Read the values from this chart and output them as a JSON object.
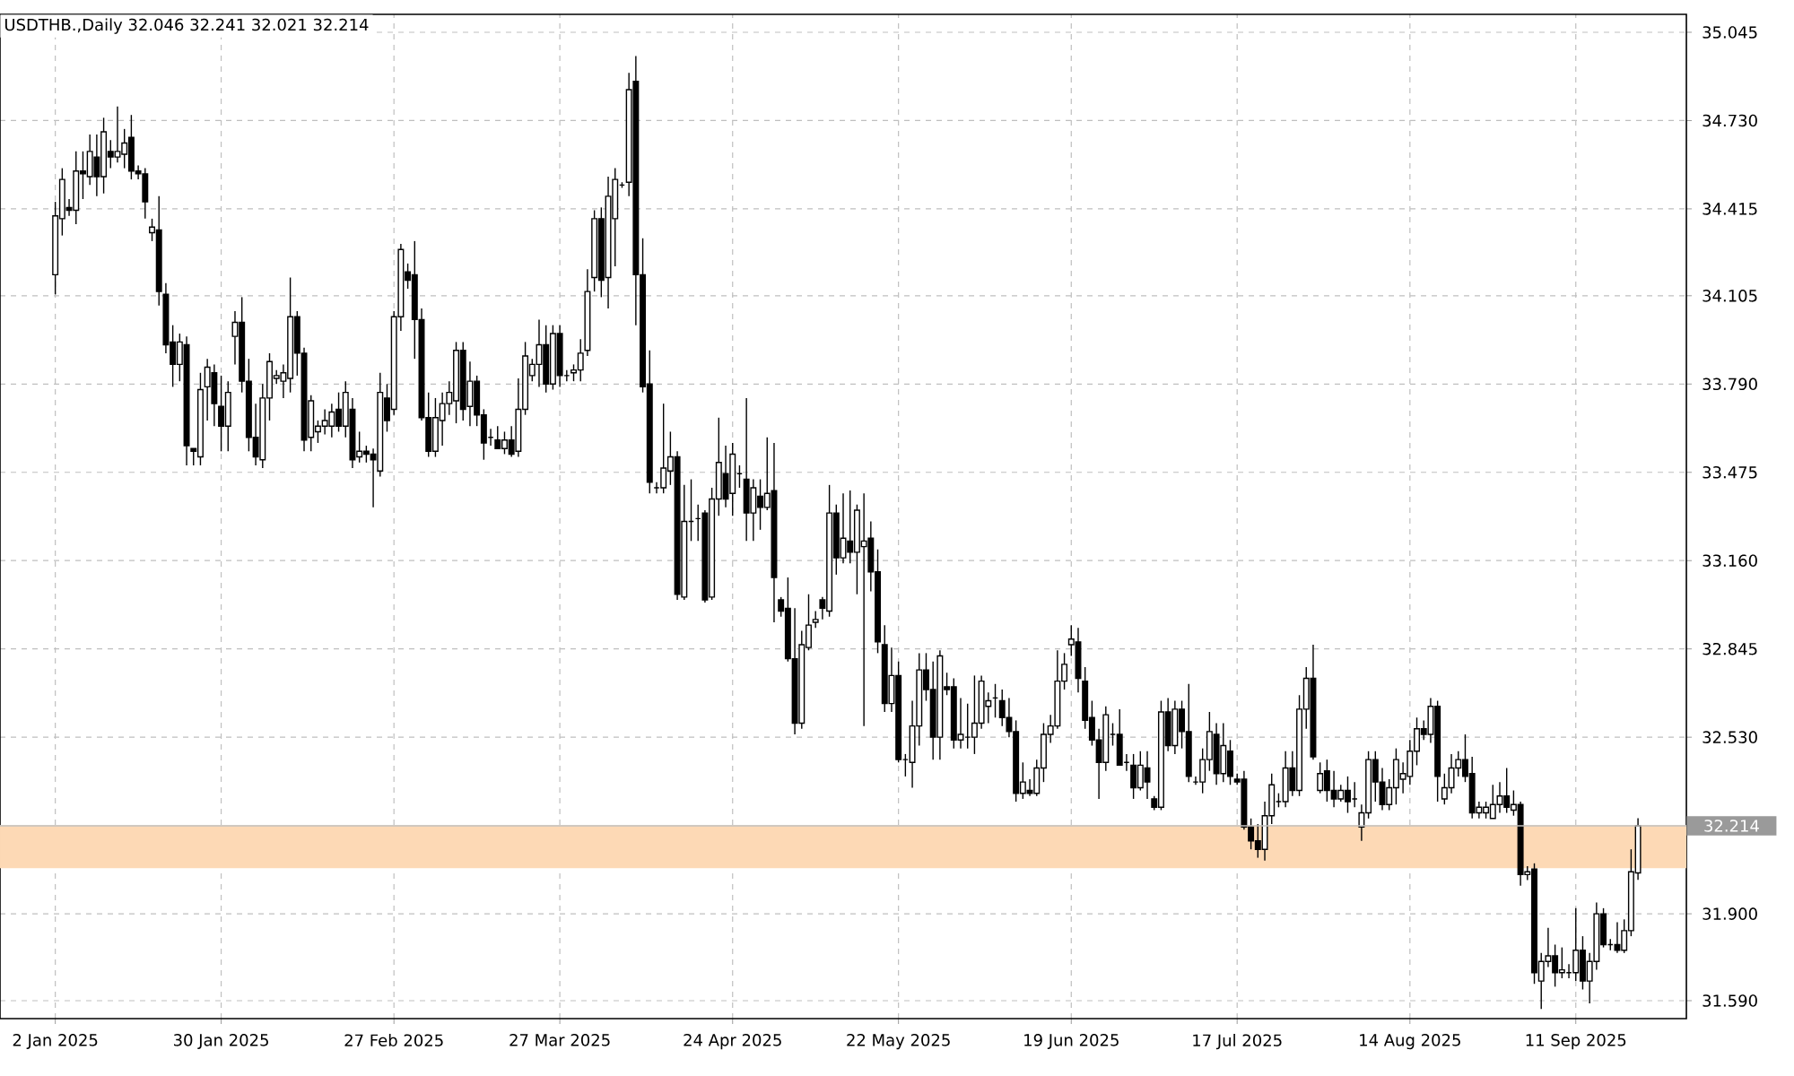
{
  "chart_data": {
    "type": "candlestick",
    "title": "USDTHB.,Daily  32.046 32.241 32.021 32.214",
    "categories": [
      "2 Jan 2025",
      null,
      null,
      null,
      null,
      null,
      null,
      null,
      null,
      null,
      null,
      null,
      null,
      null,
      null,
      null,
      null,
      null,
      null,
      null,
      null,
      null,
      null,
      null,
      "30 Jan 2025",
      null,
      null,
      null,
      null,
      null,
      null,
      null,
      null,
      null,
      null,
      null,
      null,
      null,
      null,
      null,
      null,
      null,
      null,
      null,
      null,
      null,
      null,
      null,
      null,
      "27 Feb 2025",
      null,
      null,
      null,
      null,
      null,
      null,
      null,
      null,
      null,
      null,
      null,
      null,
      null,
      null,
      null,
      null,
      null,
      null,
      null,
      null,
      null,
      null,
      null,
      "27 Mar 2025",
      null,
      null,
      null,
      null,
      null,
      null,
      null,
      null,
      null,
      null,
      null,
      null,
      null,
      null,
      null,
      null,
      null,
      null,
      null,
      null,
      null,
      null,
      null,
      null,
      "24 Apr 2025",
      null,
      null,
      null,
      null,
      null,
      null,
      null,
      null,
      null,
      null,
      null,
      null,
      null,
      null,
      null,
      null,
      null,
      null,
      null,
      null,
      null,
      null,
      null,
      "22 May 2025",
      null,
      null,
      null,
      null,
      null,
      null,
      null,
      null,
      null,
      null,
      null,
      null,
      null,
      null,
      null,
      null,
      null,
      null,
      null,
      null,
      null,
      null,
      null,
      null,
      "19 Jun 2025",
      null,
      null,
      null,
      null,
      null,
      null,
      null,
      null,
      null,
      null,
      null,
      null,
      null,
      null,
      null,
      null,
      null,
      null,
      null,
      null,
      null,
      null,
      null,
      "17 Jul 2025",
      null,
      null,
      null,
      null,
      null,
      null,
      null,
      null,
      null,
      null,
      null,
      null,
      null,
      null,
      null,
      null,
      null,
      null,
      null,
      null,
      null,
      null,
      null,
      null,
      "14 Aug 2025",
      null,
      null,
      null,
      null,
      null,
      null,
      null,
      null,
      null,
      null,
      null,
      null,
      null,
      null,
      null,
      null,
      null,
      null,
      null,
      null,
      null,
      null,
      null,
      "11 Sep 2025",
      null,
      null,
      null,
      null,
      null,
      null,
      null,
      null,
      null
    ],
    "ohlc": [
      [
        34.18,
        34.44,
        34.11,
        34.39
      ],
      [
        34.38,
        34.56,
        34.32,
        34.52
      ],
      [
        34.42,
        34.45,
        34.39,
        34.41
      ],
      [
        34.41,
        34.62,
        34.36,
        34.55
      ],
      [
        34.55,
        34.62,
        34.45,
        34.54
      ],
      [
        34.53,
        34.68,
        34.5,
        34.62
      ],
      [
        34.6,
        34.68,
        34.46,
        34.53
      ],
      [
        34.53,
        34.74,
        34.47,
        34.69
      ],
      [
        34.62,
        34.66,
        34.56,
        34.6
      ],
      [
        34.6,
        34.78,
        34.58,
        34.62
      ],
      [
        34.61,
        34.7,
        34.56,
        34.65
      ],
      [
        34.67,
        34.75,
        34.52,
        34.55
      ],
      [
        34.55,
        34.57,
        34.52,
        34.54
      ],
      [
        34.54,
        34.56,
        34.38,
        34.44
      ],
      [
        34.33,
        34.38,
        34.3,
        34.35
      ],
      [
        34.34,
        34.46,
        34.07,
        34.12
      ],
      [
        34.11,
        34.15,
        33.9,
        33.93
      ],
      [
        33.94,
        34.0,
        33.78,
        33.86
      ],
      [
        33.86,
        33.97,
        33.8,
        33.94
      ],
      [
        33.93,
        33.96,
        33.5,
        33.57
      ],
      [
        33.56,
        33.56,
        33.5,
        33.55
      ],
      [
        33.53,
        33.83,
        33.5,
        33.77
      ],
      [
        33.78,
        33.88,
        33.66,
        33.85
      ],
      [
        33.83,
        33.86,
        33.64,
        33.72
      ],
      [
        33.71,
        33.82,
        33.55,
        33.64
      ],
      [
        33.64,
        33.8,
        33.55,
        33.76
      ],
      [
        33.96,
        34.05,
        33.86,
        34.01
      ],
      [
        34.01,
        34.1,
        33.76,
        33.8
      ],
      [
        33.8,
        33.88,
        33.55,
        33.6
      ],
      [
        33.6,
        33.72,
        33.5,
        33.53
      ],
      [
        33.52,
        33.79,
        33.49,
        33.74
      ],
      [
        33.74,
        33.9,
        33.66,
        33.87
      ],
      [
        33.81,
        33.84,
        33.79,
        33.82
      ],
      [
        33.8,
        33.86,
        33.74,
        33.83
      ],
      [
        33.81,
        34.17,
        33.76,
        34.03
      ],
      [
        34.03,
        34.05,
        33.82,
        33.9
      ],
      [
        33.9,
        33.92,
        33.55,
        33.59
      ],
      [
        33.6,
        33.75,
        33.55,
        33.73
      ],
      [
        33.62,
        33.66,
        33.58,
        33.64
      ],
      [
        33.64,
        33.7,
        33.61,
        33.66
      ],
      [
        33.64,
        33.72,
        33.6,
        33.69
      ],
      [
        33.7,
        33.76,
        33.62,
        33.64
      ],
      [
        33.64,
        33.8,
        33.6,
        33.76
      ],
      [
        33.7,
        33.74,
        33.49,
        33.52
      ],
      [
        33.53,
        33.62,
        33.51,
        33.55
      ],
      [
        33.55,
        33.57,
        33.51,
        33.54
      ],
      [
        33.54,
        33.56,
        33.35,
        33.52
      ],
      [
        33.48,
        33.83,
        33.46,
        33.76
      ],
      [
        33.74,
        33.79,
        33.62,
        33.66
      ],
      [
        33.7,
        34.05,
        33.68,
        34.03
      ],
      [
        34.03,
        34.29,
        33.98,
        34.27
      ],
      [
        34.19,
        34.22,
        34.13,
        34.16
      ],
      [
        34.18,
        34.3,
        33.88,
        34.02
      ],
      [
        34.02,
        34.06,
        33.66,
        33.67
      ],
      [
        33.67,
        33.76,
        33.53,
        33.55
      ],
      [
        33.55,
        33.74,
        33.53,
        33.67
      ],
      [
        33.66,
        33.76,
        33.57,
        33.72
      ],
      [
        33.72,
        33.8,
        33.68,
        33.76
      ],
      [
        33.73,
        33.94,
        33.65,
        33.91
      ],
      [
        33.91,
        33.94,
        33.66,
        33.7
      ],
      [
        33.71,
        33.87,
        33.64,
        33.8
      ],
      [
        33.8,
        33.82,
        33.64,
        33.68
      ],
      [
        33.68,
        33.7,
        33.52,
        33.58
      ],
      [
        33.6,
        33.63,
        33.57,
        33.6
      ],
      [
        33.59,
        33.64,
        33.56,
        33.56
      ],
      [
        33.56,
        33.62,
        33.54,
        33.59
      ],
      [
        33.59,
        33.64,
        33.53,
        33.54
      ],
      [
        33.55,
        33.81,
        33.53,
        33.7
      ],
      [
        33.7,
        33.94,
        33.68,
        33.89
      ],
      [
        33.82,
        33.88,
        33.8,
        33.86
      ],
      [
        33.86,
        34.02,
        33.78,
        33.93
      ],
      [
        33.93,
        34.0,
        33.76,
        33.79
      ],
      [
        33.79,
        34.0,
        33.77,
        33.97
      ],
      [
        33.97,
        34.0,
        33.78,
        33.82
      ],
      [
        33.82,
        33.84,
        33.8,
        33.82
      ],
      [
        33.83,
        33.86,
        33.8,
        33.84
      ],
      [
        33.84,
        33.95,
        33.8,
        33.9
      ],
      [
        33.91,
        34.2,
        33.89,
        34.12
      ],
      [
        34.17,
        34.41,
        34.12,
        34.38
      ],
      [
        34.38,
        34.42,
        34.1,
        34.16
      ],
      [
        34.17,
        34.53,
        34.06,
        34.46
      ],
      [
        34.38,
        34.56,
        34.21,
        34.52
      ],
      [
        34.5,
        34.51,
        34.49,
        34.5
      ],
      [
        34.51,
        34.9,
        34.46,
        34.84
      ],
      [
        34.87,
        34.96,
        34.0,
        34.18
      ],
      [
        34.18,
        34.31,
        33.76,
        33.78
      ],
      [
        33.79,
        33.91,
        33.4,
        33.44
      ],
      [
        33.42,
        33.44,
        33.4,
        33.42
      ],
      [
        33.42,
        33.72,
        33.4,
        33.49
      ],
      [
        33.48,
        33.62,
        33.43,
        33.53
      ],
      [
        33.53,
        33.55,
        33.02,
        33.04
      ],
      [
        33.03,
        33.43,
        33.02,
        33.3
      ],
      [
        33.3,
        33.45,
        33.23,
        33.3
      ],
      [
        33.31,
        33.36,
        33.23,
        33.31
      ],
      [
        33.33,
        33.34,
        33.01,
        33.02
      ],
      [
        33.03,
        33.42,
        33.02,
        33.38
      ],
      [
        33.38,
        33.67,
        33.32,
        33.51
      ],
      [
        33.47,
        33.57,
        33.35,
        33.38
      ],
      [
        33.4,
        33.58,
        33.32,
        33.54
      ],
      [
        33.47,
        33.5,
        33.42,
        33.47
      ],
      [
        33.45,
        33.74,
        33.23,
        33.33
      ],
      [
        33.33,
        33.45,
        33.23,
        33.42
      ],
      [
        33.39,
        33.45,
        33.27,
        33.35
      ],
      [
        33.35,
        33.6,
        33.34,
        33.4
      ],
      [
        33.41,
        33.58,
        32.94,
        33.1
      ],
      [
        33.02,
        33.03,
        32.96,
        32.98
      ],
      [
        32.99,
        33.1,
        32.8,
        32.81
      ],
      [
        32.81,
        32.99,
        32.54,
        32.58
      ],
      [
        32.58,
        32.91,
        32.56,
        32.86
      ],
      [
        32.85,
        33.04,
        32.84,
        32.93
      ],
      [
        32.94,
        32.98,
        32.92,
        32.95
      ],
      [
        33.02,
        33.03,
        32.95,
        32.99
      ],
      [
        32.98,
        33.43,
        32.96,
        33.33
      ],
      [
        33.33,
        33.36,
        33.11,
        33.17
      ],
      [
        33.17,
        33.4,
        33.15,
        33.24
      ],
      [
        33.23,
        33.41,
        33.15,
        33.19
      ],
      [
        33.19,
        33.36,
        33.04,
        33.34
      ],
      [
        33.21,
        33.4,
        32.57,
        33.23
      ],
      [
        33.24,
        33.3,
        33.05,
        33.12
      ],
      [
        33.12,
        33.2,
        32.83,
        32.87
      ],
      [
        32.86,
        32.93,
        32.62,
        32.65
      ],
      [
        32.65,
        32.85,
        32.62,
        32.75
      ],
      [
        32.75,
        32.8,
        32.44,
        32.45
      ],
      [
        32.45,
        32.47,
        32.39,
        32.45
      ],
      [
        32.44,
        32.66,
        32.35,
        32.57
      ],
      [
        32.57,
        32.83,
        32.5,
        32.77
      ],
      [
        32.77,
        32.83,
        32.66,
        32.7
      ],
      [
        32.7,
        32.8,
        32.45,
        32.53
      ],
      [
        32.53,
        32.84,
        32.45,
        32.82
      ],
      [
        32.71,
        32.76,
        32.68,
        32.7
      ],
      [
        32.71,
        32.74,
        32.49,
        32.52
      ],
      [
        32.52,
        32.67,
        32.49,
        32.54
      ],
      [
        32.53,
        32.65,
        32.49,
        32.53
      ],
      [
        32.53,
        32.75,
        32.47,
        32.58
      ],
      [
        32.58,
        32.75,
        32.56,
        32.73
      ],
      [
        32.64,
        32.69,
        32.58,
        32.66
      ],
      [
        32.67,
        32.72,
        32.6,
        32.67
      ],
      [
        32.66,
        32.7,
        32.57,
        32.6
      ],
      [
        32.6,
        32.67,
        32.53,
        32.55
      ],
      [
        32.55,
        32.59,
        32.3,
        32.33
      ],
      [
        32.33,
        32.44,
        32.31,
        32.37
      ],
      [
        32.34,
        32.38,
        32.32,
        32.33
      ],
      [
        32.33,
        32.45,
        32.32,
        32.42
      ],
      [
        32.42,
        32.58,
        32.37,
        32.54
      ],
      [
        32.54,
        32.61,
        32.51,
        32.57
      ],
      [
        32.57,
        32.84,
        32.56,
        32.73
      ],
      [
        32.73,
        32.83,
        32.7,
        32.79
      ],
      [
        32.86,
        32.93,
        32.82,
        32.88
      ],
      [
        32.87,
        32.92,
        32.69,
        32.74
      ],
      [
        32.73,
        32.78,
        32.56,
        32.59
      ],
      [
        32.6,
        32.66,
        32.5,
        32.52
      ],
      [
        32.52,
        32.56,
        32.31,
        32.44
      ],
      [
        32.44,
        32.64,
        32.41,
        32.61
      ],
      [
        32.54,
        32.58,
        32.5,
        32.54
      ],
      [
        32.54,
        32.63,
        32.43,
        32.43
      ],
      [
        32.44,
        32.47,
        32.41,
        32.44
      ],
      [
        32.43,
        32.47,
        32.31,
        32.35
      ],
      [
        32.35,
        32.48,
        32.34,
        32.43
      ],
      [
        32.42,
        32.48,
        32.31,
        32.37
      ],
      [
        32.31,
        32.32,
        32.27,
        32.28
      ],
      [
        32.28,
        32.66,
        32.27,
        32.62
      ],
      [
        32.62,
        32.67,
        32.48,
        32.5
      ],
      [
        32.5,
        32.66,
        32.47,
        32.63
      ],
      [
        32.63,
        32.66,
        32.49,
        32.55
      ],
      [
        32.55,
        32.72,
        32.37,
        32.39
      ],
      [
        32.37,
        32.39,
        32.36,
        32.37
      ],
      [
        32.37,
        32.49,
        32.33,
        32.45
      ],
      [
        32.45,
        32.62,
        32.41,
        32.55
      ],
      [
        32.54,
        32.58,
        32.36,
        32.4
      ],
      [
        32.4,
        32.58,
        32.37,
        32.5
      ],
      [
        32.48,
        32.52,
        32.36,
        32.39
      ],
      [
        32.38,
        32.4,
        32.36,
        32.37
      ],
      [
        32.38,
        32.41,
        32.2,
        32.21
      ],
      [
        32.21,
        32.24,
        32.13,
        32.16
      ],
      [
        32.16,
        32.22,
        32.1,
        32.13
      ],
      [
        32.13,
        32.3,
        32.09,
        32.25
      ],
      [
        32.25,
        32.4,
        32.22,
        32.36
      ],
      [
        32.3,
        32.33,
        32.28,
        32.3
      ],
      [
        32.3,
        32.48,
        32.28,
        32.42
      ],
      [
        32.42,
        32.48,
        32.32,
        32.34
      ],
      [
        32.34,
        32.68,
        32.32,
        32.63
      ],
      [
        32.63,
        32.78,
        32.56,
        32.74
      ],
      [
        32.74,
        32.86,
        32.45,
        32.46
      ],
      [
        32.34,
        32.44,
        32.33,
        32.4
      ],
      [
        32.41,
        32.45,
        32.3,
        32.34
      ],
      [
        32.34,
        32.41,
        32.28,
        32.31
      ],
      [
        32.31,
        32.36,
        32.3,
        32.34
      ],
      [
        32.34,
        32.39,
        32.26,
        32.3
      ],
      [
        32.31,
        32.37,
        32.28,
        32.31
      ],
      [
        32.21,
        32.29,
        32.16,
        32.26
      ],
      [
        32.26,
        32.48,
        32.24,
        32.45
      ],
      [
        32.45,
        32.48,
        32.3,
        32.37
      ],
      [
        32.37,
        32.42,
        32.27,
        32.29
      ],
      [
        32.29,
        32.38,
        32.27,
        32.35
      ],
      [
        32.35,
        32.49,
        32.29,
        32.45
      ],
      [
        32.38,
        32.44,
        32.33,
        32.4
      ],
      [
        32.39,
        32.52,
        32.36,
        32.48
      ],
      [
        32.48,
        32.6,
        32.43,
        32.56
      ],
      [
        32.56,
        32.59,
        32.52,
        32.54
      ],
      [
        32.54,
        32.67,
        32.51,
        32.64
      ],
      [
        32.64,
        32.66,
        32.3,
        32.39
      ],
      [
        32.31,
        32.4,
        32.29,
        32.35
      ],
      [
        32.35,
        32.47,
        32.33,
        32.42
      ],
      [
        32.42,
        32.48,
        32.39,
        32.45
      ],
      [
        32.45,
        32.54,
        32.37,
        32.39
      ],
      [
        32.4,
        32.46,
        32.24,
        32.26
      ],
      [
        32.26,
        32.3,
        32.24,
        32.28
      ],
      [
        32.26,
        32.3,
        32.24,
        32.28
      ],
      [
        32.24,
        32.36,
        32.24,
        32.29
      ],
      [
        32.29,
        32.37,
        32.26,
        32.32
      ],
      [
        32.32,
        32.42,
        32.26,
        32.28
      ],
      [
        32.27,
        32.34,
        32.25,
        32.29
      ],
      [
        32.29,
        32.3,
        32.0,
        32.04
      ],
      [
        32.04,
        32.07,
        32.02,
        32.05
      ],
      [
        32.06,
        32.08,
        31.65,
        31.69
      ],
      [
        31.66,
        31.76,
        31.56,
        31.73
      ],
      [
        31.73,
        31.85,
        31.71,
        31.75
      ],
      [
        31.75,
        31.79,
        31.64,
        31.69
      ],
      [
        31.69,
        31.78,
        31.67,
        31.7
      ],
      [
        31.69,
        31.72,
        31.67,
        31.69
      ],
      [
        31.69,
        31.92,
        31.66,
        31.77
      ],
      [
        31.77,
        31.82,
        31.63,
        31.66
      ],
      [
        31.66,
        31.76,
        31.58,
        31.73
      ],
      [
        31.73,
        31.94,
        31.7,
        31.9
      ],
      [
        31.9,
        31.92,
        31.78,
        31.79
      ],
      [
        31.79,
        31.81,
        31.77,
        31.79
      ],
      [
        31.79,
        31.87,
        31.76,
        31.77
      ],
      [
        31.77,
        31.88,
        31.76,
        31.84
      ],
      [
        31.84,
        32.13,
        31.82,
        32.05
      ],
      [
        32.046,
        32.241,
        32.021,
        32.214
      ]
    ],
    "ylim": [
      31.526,
      35.109
    ],
    "yticks": [
      {
        "value": 31.59,
        "label": "31.590"
      },
      {
        "value": 31.9,
        "label": "31.900"
      },
      {
        "value": 32.53,
        "label": "32.530"
      },
      32.845,
      {
        "value": 33.16,
        "label": "33.160"
      },
      33.475,
      {
        "value": 33.79,
        "label": "33.790"
      },
      34.105,
      34.415,
      {
        "value": 34.73,
        "label": "34.730"
      },
      35.045
    ],
    "ref_lines": [
      {
        "axis": "y",
        "value": 32.214,
        "label": "32.214",
        "color": "#c0c0c0"
      }
    ],
    "bands": [
      {
        "axis": "y",
        "from": 32.063,
        "to": 32.216,
        "color": "#fdd9b5"
      }
    ],
    "grid": true
  }
}
